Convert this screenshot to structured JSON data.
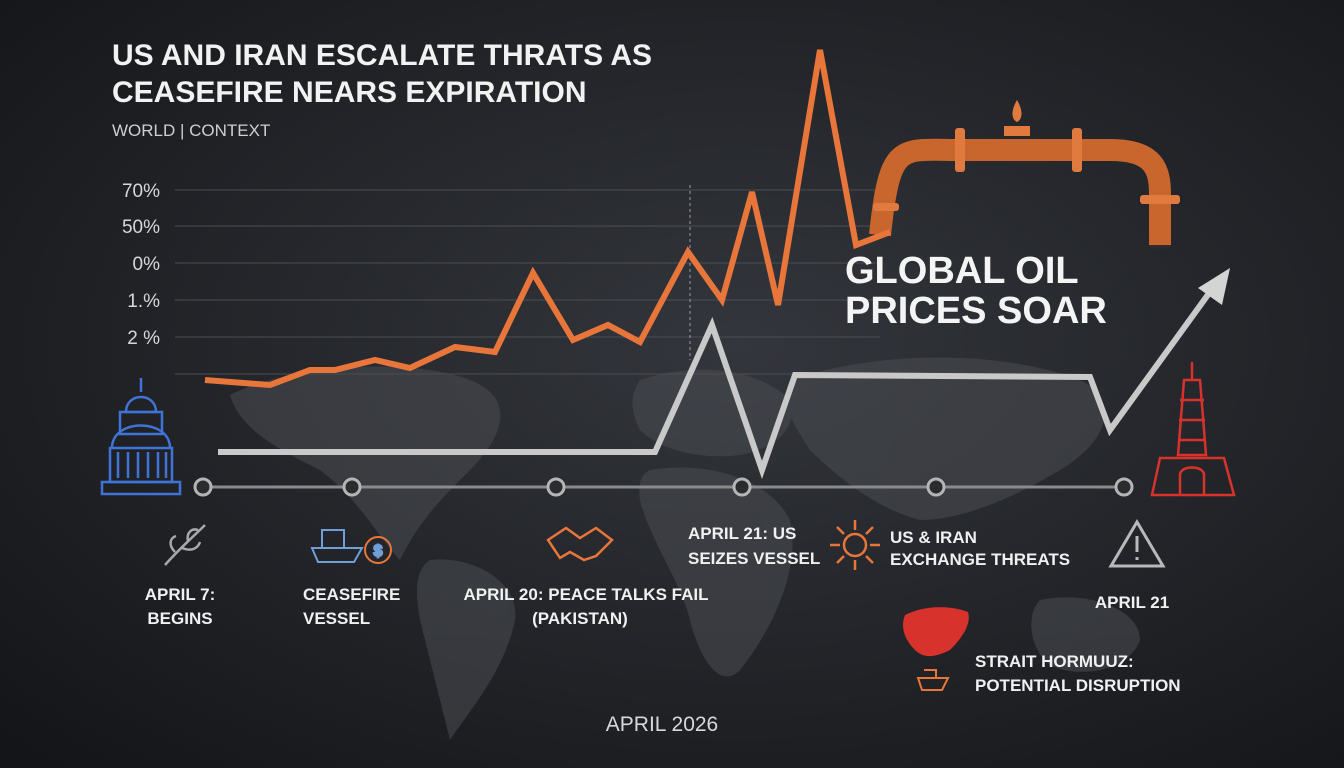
{
  "header": {
    "title_lines": [
      "US AND IRAN ESCALATE THRATS AS",
      "CEASEFIRE NEARS EXPIRATION"
    ],
    "subtitle": "WORLD | CONTEXT"
  },
  "axis_labels": [
    "70%",
    "50%",
    "0%",
    "1.%",
    "2 %"
  ],
  "headline": [
    "GLOBAL OIL",
    "PRICES SOAR"
  ],
  "events": [
    {
      "lines": [
        "APRIL 7:",
        "BEGINS"
      ]
    },
    {
      "lines": [
        "CEASEFIRE",
        "VESSEL"
      ]
    },
    {
      "lines": [
        "APRIL 20: PEACE TALKS FAIL",
        "(PAKISTAN)"
      ]
    },
    {
      "lines": [
        "APRIL 21: US",
        "SEIZES VESSEL"
      ]
    },
    {
      "lines": [
        "US & IRAN",
        "EXCHANGE THREATS"
      ]
    },
    {
      "lines": [
        "APRIL 21"
      ]
    }
  ],
  "strait": [
    "STRAIT HORMUUZ:",
    "POTENTIAL DISRUPTION"
  ],
  "footer": "APRIL 2026"
}
